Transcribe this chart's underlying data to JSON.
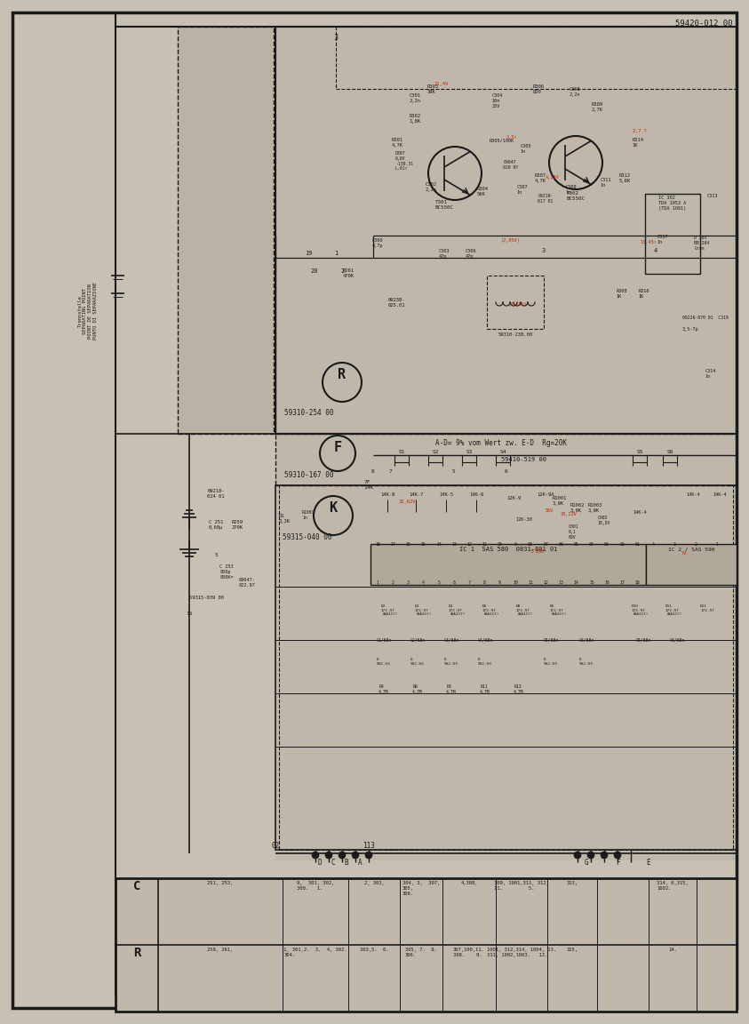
{
  "bg_color": "#c8c0b2",
  "paper_color": "#c8c0b2",
  "line_color": "#1a1a1a",
  "red_color": "#bb2200",
  "figsize": [
    8.43,
    11.52
  ],
  "dpi": 100,
  "top_label": "59420-012 00",
  "trennstelle_text": "Trennstelle\nSEPARATING POINT\nPOINT DE SEPARATION\nPUNTO DI SEPARAZIONE",
  "note_text": "A-D= 9% vom Wert zw. E-D  Rg=20K",
  "shade_color": "#bab2a4",
  "shade_color2": "#b8b0a2"
}
